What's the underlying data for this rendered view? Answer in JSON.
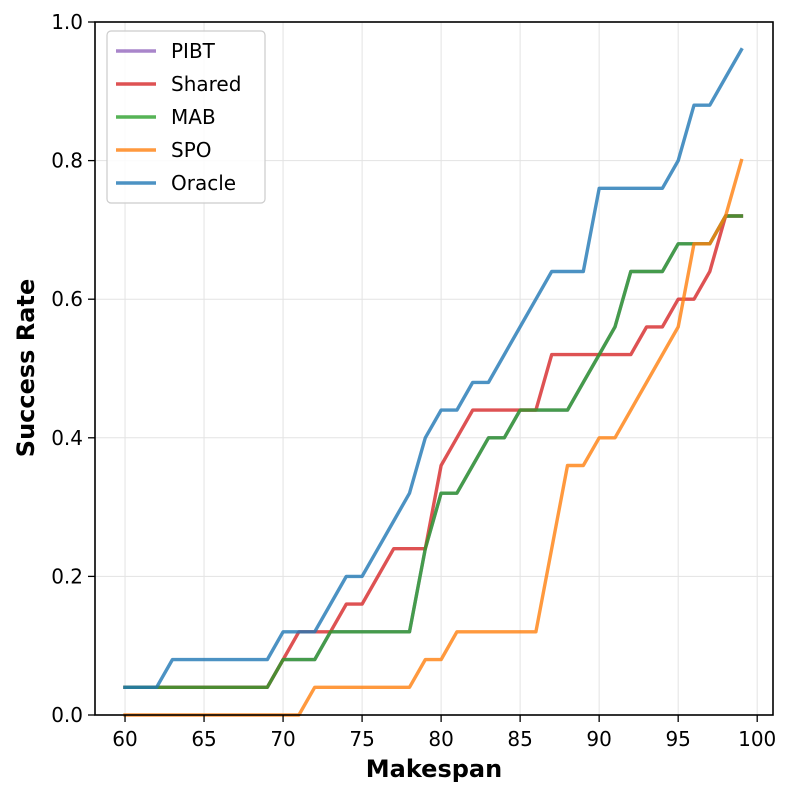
{
  "chart_data": {
    "type": "line",
    "xlabel": "Makespan",
    "ylabel": "Success Rate",
    "xlim": [
      58.1,
      101.0
    ],
    "ylim": [
      0.0,
      1.0
    ],
    "xticks": [
      60,
      65,
      70,
      75,
      80,
      85,
      90,
      95,
      100
    ],
    "yticks": [
      0.0,
      0.2,
      0.4,
      0.6,
      0.8,
      1.0
    ],
    "xtick_labels": [
      "60",
      "65",
      "70",
      "75",
      "80",
      "85",
      "90",
      "95",
      "100"
    ],
    "ytick_labels": [
      "0.0",
      "0.2",
      "0.4",
      "0.6",
      "0.8",
      "1.0"
    ],
    "grid": true,
    "legend_position": "top-left",
    "series": [
      {
        "name": "PIBT",
        "color": "#9467bd",
        "x": [
          60,
          69,
          70,
          71,
          72,
          73,
          74,
          75,
          76,
          77,
          78,
          79,
          80,
          81,
          82,
          83,
          84,
          85,
          86,
          87,
          88,
          89,
          90,
          91,
          92,
          93,
          94,
          95,
          96,
          97,
          98,
          99
        ],
        "y": [
          0.04,
          0.04,
          0.08,
          0.08,
          0.08,
          0.12,
          0.12,
          0.12,
          0.12,
          0.12,
          0.12,
          0.24,
          0.32,
          0.32,
          0.36,
          0.4,
          0.4,
          0.44,
          0.44,
          0.44,
          0.44,
          0.48,
          0.52,
          0.56,
          0.64,
          0.64,
          0.64,
          0.68,
          0.68,
          0.68,
          0.72,
          0.72
        ]
      },
      {
        "name": "Shared",
        "color": "#d62728",
        "x": [
          60,
          69,
          70,
          71,
          72,
          73,
          74,
          75,
          76,
          77,
          78,
          79,
          80,
          81,
          82,
          83,
          84,
          85,
          86,
          87,
          88,
          89,
          90,
          91,
          92,
          93,
          94,
          95,
          96,
          97,
          98,
          99
        ],
        "y": [
          0.04,
          0.04,
          0.08,
          0.12,
          0.12,
          0.12,
          0.16,
          0.16,
          0.2,
          0.24,
          0.24,
          0.24,
          0.36,
          0.4,
          0.44,
          0.44,
          0.44,
          0.44,
          0.44,
          0.52,
          0.52,
          0.52,
          0.52,
          0.52,
          0.52,
          0.56,
          0.56,
          0.6,
          0.6,
          0.64,
          0.72,
          0.72
        ]
      },
      {
        "name": "MAB",
        "color": "#2ca02c",
        "x": [
          60,
          69,
          70,
          71,
          72,
          73,
          74,
          75,
          76,
          77,
          78,
          79,
          80,
          81,
          82,
          83,
          84,
          85,
          86,
          87,
          88,
          89,
          90,
          91,
          92,
          93,
          94,
          95,
          96,
          97,
          98,
          99
        ],
        "y": [
          0.04,
          0.04,
          0.08,
          0.08,
          0.08,
          0.12,
          0.12,
          0.12,
          0.12,
          0.12,
          0.12,
          0.24,
          0.32,
          0.32,
          0.36,
          0.4,
          0.4,
          0.44,
          0.44,
          0.44,
          0.44,
          0.48,
          0.52,
          0.56,
          0.64,
          0.64,
          0.64,
          0.68,
          0.68,
          0.68,
          0.72,
          0.72
        ]
      },
      {
        "name": "SPO",
        "color": "#ff7f0e",
        "x": [
          60,
          70,
          71,
          72,
          73,
          74,
          75,
          76,
          77,
          78,
          79,
          80,
          81,
          82,
          83,
          84,
          85,
          86,
          87,
          88,
          89,
          90,
          91,
          92,
          93,
          94,
          95,
          96,
          97,
          98,
          99
        ],
        "y": [
          0.0,
          0.0,
          0.0,
          0.04,
          0.04,
          0.04,
          0.04,
          0.04,
          0.04,
          0.04,
          0.08,
          0.08,
          0.12,
          0.12,
          0.12,
          0.12,
          0.12,
          0.12,
          0.24,
          0.36,
          0.36,
          0.4,
          0.4,
          0.44,
          0.48,
          0.52,
          0.56,
          0.68,
          0.68,
          0.72,
          0.8
        ]
      },
      {
        "name": "Oracle",
        "color": "#1f77b4",
        "x": [
          60,
          62,
          63,
          69,
          70,
          71,
          72,
          73,
          74,
          75,
          76,
          77,
          78,
          79,
          80,
          81,
          82,
          83,
          84,
          85,
          86,
          87,
          88,
          89,
          90,
          91,
          92,
          93,
          94,
          95,
          96,
          97,
          98,
          99
        ],
        "y": [
          0.04,
          0.04,
          0.08,
          0.08,
          0.12,
          0.12,
          0.12,
          0.16,
          0.2,
          0.2,
          0.24,
          0.28,
          0.32,
          0.4,
          0.44,
          0.44,
          0.48,
          0.48,
          0.52,
          0.56,
          0.6,
          0.64,
          0.64,
          0.64,
          0.76,
          0.76,
          0.76,
          0.76,
          0.76,
          0.8,
          0.88,
          0.88,
          0.92,
          0.96
        ]
      }
    ]
  }
}
